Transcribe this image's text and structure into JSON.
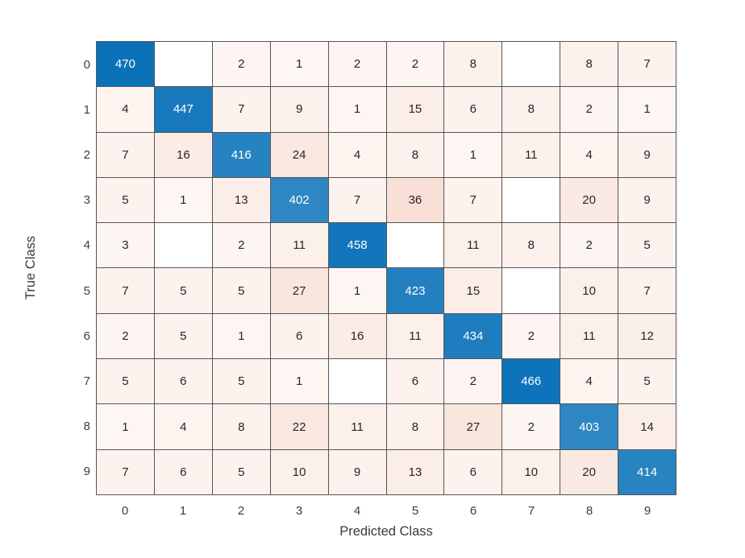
{
  "chart_data": {
    "type": "heatmap",
    "subtype": "confusion-matrix",
    "title": "",
    "xlabel": "Predicted Class",
    "ylabel": "True Class",
    "x_tick_labels": [
      "0",
      "1",
      "2",
      "3",
      "4",
      "5",
      "6",
      "7",
      "8",
      "9"
    ],
    "y_tick_labels": [
      "0",
      "1",
      "2",
      "3",
      "4",
      "5",
      "6",
      "7",
      "8",
      "9"
    ],
    "matrix": [
      [
        470,
        null,
        2,
        1,
        2,
        2,
        8,
        null,
        8,
        7
      ],
      [
        4,
        447,
        7,
        9,
        1,
        15,
        6,
        8,
        2,
        1
      ],
      [
        7,
        16,
        416,
        24,
        4,
        8,
        1,
        11,
        4,
        9
      ],
      [
        5,
        1,
        13,
        402,
        7,
        36,
        7,
        null,
        20,
        9
      ],
      [
        3,
        null,
        2,
        11,
        458,
        null,
        11,
        8,
        2,
        5
      ],
      [
        7,
        5,
        5,
        27,
        1,
        423,
        15,
        null,
        10,
        7
      ],
      [
        2,
        5,
        1,
        6,
        16,
        11,
        434,
        2,
        11,
        12
      ],
      [
        5,
        6,
        5,
        1,
        null,
        6,
        2,
        466,
        4,
        5
      ],
      [
        1,
        4,
        8,
        22,
        11,
        8,
        27,
        2,
        403,
        14
      ],
      [
        7,
        6,
        5,
        10,
        9,
        13,
        6,
        10,
        20,
        414
      ]
    ],
    "max_value": 470,
    "max_off_diagonal": 36,
    "colors": {
      "diagonal_base": "#0b72b9",
      "off_diagonal_base": "#d95319",
      "empty_cell": "#ffffff",
      "grid_line": "#555555",
      "cell_text_dark": "#262626",
      "cell_text_light": "#ffffff",
      "tick_text": "#3d3d3d",
      "axis_label_text": "#3a3a3a"
    },
    "layout": {
      "grid_on": true,
      "legend": "none"
    }
  }
}
